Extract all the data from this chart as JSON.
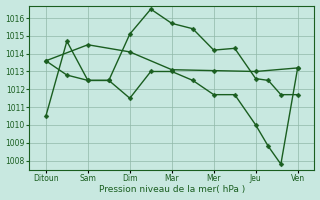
{
  "title": "Pression niveau de la mer( hPa )",
  "background_color": "#c8e8e0",
  "grid_color": "#90b8a8",
  "line_color": "#1a5e20",
  "ylim": [
    1007.5,
    1016.7
  ],
  "yticks": [
    1008,
    1009,
    1010,
    1011,
    1012,
    1013,
    1014,
    1015,
    1016
  ],
  "xlabels": [
    "Ditoun",
    "Sam",
    "Dim",
    "Mar",
    "Mer",
    "Jeu",
    "Ven"
  ],
  "line1_x": [
    0,
    1,
    2,
    3,
    4,
    5,
    6
  ],
  "line1_y": [
    1013.6,
    1014.5,
    1014.1,
    1013.1,
    1013.05,
    1013.0,
    1013.2
  ],
  "line2_x": [
    0,
    0.5,
    1,
    1.5,
    2,
    2.5,
    3,
    3.5,
    4,
    4.5,
    5,
    5.3,
    5.6,
    6
  ],
  "line2_y": [
    1010.5,
    1014.7,
    1012.5,
    1012.5,
    1015.1,
    1016.5,
    1015.7,
    1015.4,
    1014.2,
    1014.3,
    1012.6,
    1012.5,
    1011.7,
    1011.7
  ],
  "line3_x": [
    0,
    0.5,
    1,
    1.5,
    2,
    2.5,
    3,
    3.5,
    4,
    4.5,
    5,
    5.3,
    5.6,
    6
  ],
  "line3_y": [
    1013.6,
    1012.8,
    1012.5,
    1012.5,
    1011.5,
    1013.0,
    1013.0,
    1012.5,
    1011.7,
    1011.7,
    1010.0,
    1008.8,
    1007.8,
    1013.2
  ],
  "marker_size": 2.5,
  "line_width": 1.0,
  "tick_fontsize": 5.5,
  "xlabel_fontsize": 6.5
}
